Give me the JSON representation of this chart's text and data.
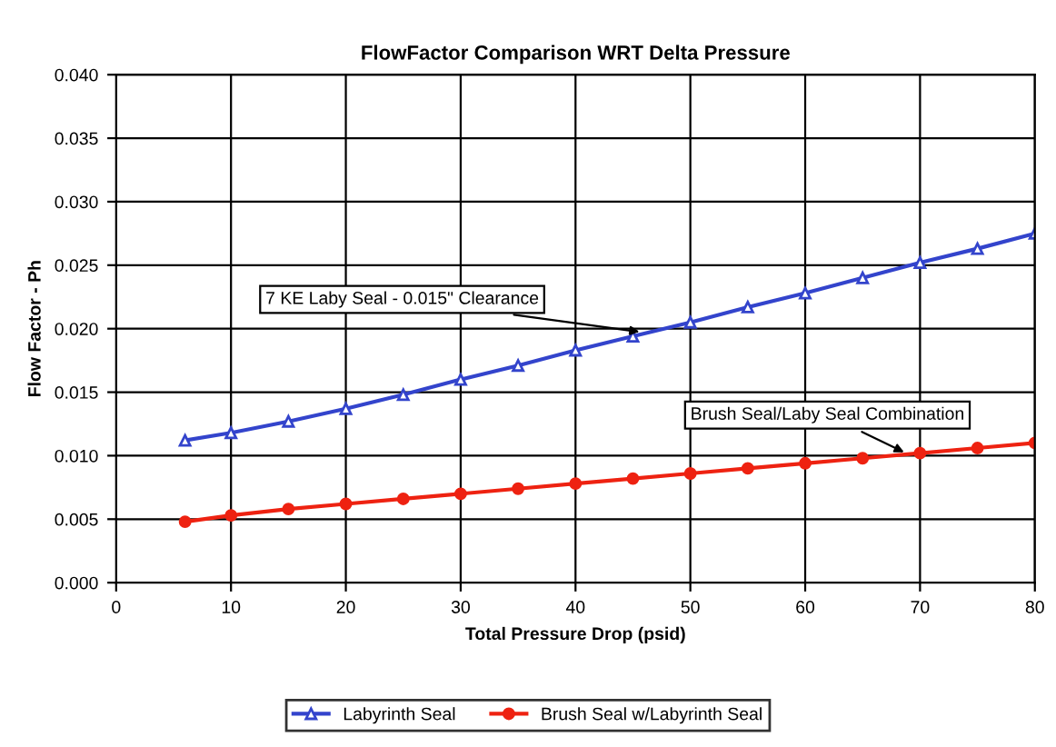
{
  "chart_data": {
    "type": "line",
    "title": "FlowFactor Comparison WRT Delta Pressure",
    "xlabel": "Total Pressure Drop (psid)",
    "ylabel": "Flow Factor - Ph",
    "x": [
      6,
      10,
      15,
      20,
      25,
      30,
      35,
      40,
      45,
      50,
      55,
      60,
      65,
      70,
      75,
      80
    ],
    "series": [
      {
        "name": "Labyrinth Seal",
        "color": "#3344cc",
        "marker": "triangle",
        "values": [
          0.0112,
          0.0118,
          0.0127,
          0.0137,
          0.0148,
          0.016,
          0.0171,
          0.0183,
          0.0194,
          0.0205,
          0.0217,
          0.0228,
          0.024,
          0.0252,
          0.0263,
          0.0275
        ]
      },
      {
        "name": "Brush Seal w/Labyrinth Seal",
        "color": "#ee2211",
        "marker": "circle",
        "values": [
          0.0048,
          0.0053,
          0.0058,
          0.0062,
          0.0066,
          0.007,
          0.0074,
          0.0078,
          0.0082,
          0.0086,
          0.009,
          0.0094,
          0.0098,
          0.0102,
          0.0106,
          0.011
        ]
      }
    ],
    "annotations": [
      {
        "text": "7 KE Laby Seal - 0.015\" Clearance",
        "x": 46,
        "y": 0.0197
      },
      {
        "text": "Brush Seal/Laby Seal Combination",
        "x": 69,
        "y": 0.0101
      }
    ],
    "xlim": [
      0,
      80
    ],
    "xticks": [
      0,
      10,
      20,
      30,
      40,
      50,
      60,
      70,
      80
    ],
    "ylim": [
      0,
      0.04
    ],
    "yticks": [
      {
        "value": 0,
        "label": "0.000"
      },
      {
        "value": 0.005,
        "label": "0.005"
      },
      {
        "value": 0.01,
        "label": "0.010"
      },
      {
        "value": 0.015,
        "label": "0.015"
      },
      {
        "value": 0.02,
        "label": "0.020"
      },
      {
        "value": 0.025,
        "label": "0.025"
      },
      {
        "value": 0.03,
        "label": "0.030"
      },
      {
        "value": 0.035,
        "label": "0.035"
      },
      {
        "value": 0.04,
        "label": "0.040"
      }
    ],
    "grid": true,
    "legend": "bottom",
    "line_style": "solid"
  }
}
